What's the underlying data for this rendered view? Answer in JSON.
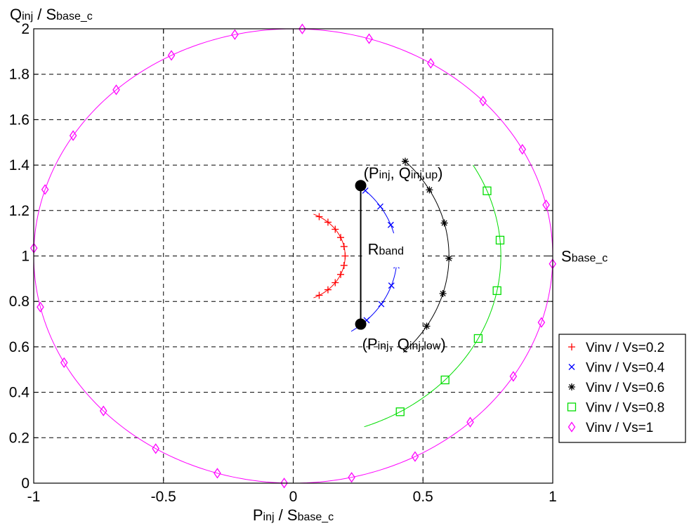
{
  "chart_data": {
    "type": "line",
    "ylabel": {
      "main": "Q",
      "sub1": "inj",
      "mid": " / S",
      "sub2": "base_c"
    },
    "xlabel": {
      "main": "P",
      "sub1": "inj",
      "mid": " / S",
      "sub2": "base_c"
    },
    "xlim": [
      -1,
      1
    ],
    "ylim": [
      0,
      2
    ],
    "xticks": [
      -1,
      -0.5,
      0,
      0.5,
      1
    ],
    "xtick_labels": [
      "-1",
      "-0.5",
      "0",
      "0.5",
      "1"
    ],
    "yticks": [
      0,
      0.2,
      0.4,
      0.6,
      0.8,
      1,
      1.2,
      1.4,
      1.6,
      1.8,
      2
    ],
    "ytick_labels": [
      "0",
      "0.2",
      "0.4",
      "0.6",
      "0.8",
      "1",
      "1.2",
      "1.4",
      "1.6",
      "1.8",
      "2"
    ],
    "grid": true,
    "legend_position": "right",
    "series": [
      {
        "name": "Vinv / Vs=0.2",
        "radius": 0.2,
        "marker": "plus",
        "color": "#ff0000",
        "arc_start_deg": -67,
        "arc_end_deg": 67
      },
      {
        "name": "Vinv / Vs=0.4",
        "radius": 0.4,
        "marker": "x",
        "color": "#0000ff",
        "arc_start_deg": -56,
        "arc_end_deg": 52
      },
      {
        "name": "Vinv / Vs=0.6",
        "radius": 0.6,
        "marker": "star",
        "color": "#000000",
        "arc_start_deg": -45,
        "arc_end_deg": 45
      },
      {
        "name": "Vinv / Vs=0.8",
        "radius": 0.8,
        "marker": "square",
        "color": "#00dd00",
        "arc_start_deg": -70,
        "arc_end_deg": 30
      },
      {
        "name": "Vinv / Vs=1",
        "radius": 1.0,
        "marker": "diamond",
        "color": "#ff00ff",
        "arc_start_deg": -90,
        "arc_end_deg": 270
      }
    ],
    "band_line": {
      "x": 0.26,
      "y_low": 0.7,
      "y_up": 1.31
    },
    "annotations": {
      "upper_point": {
        "open": "(P",
        "sub1": "inj",
        "mid": ", Q",
        "sub2": "inj,up",
        "close": ")"
      },
      "lower_point": {
        "open": "(P",
        "sub1": "inj",
        "mid": ", Q",
        "sub2": "inj,low",
        "close": ")"
      },
      "band": {
        "main": "R",
        "sub": "band"
      },
      "sbase": {
        "main": "S",
        "sub": "base_c"
      }
    }
  }
}
